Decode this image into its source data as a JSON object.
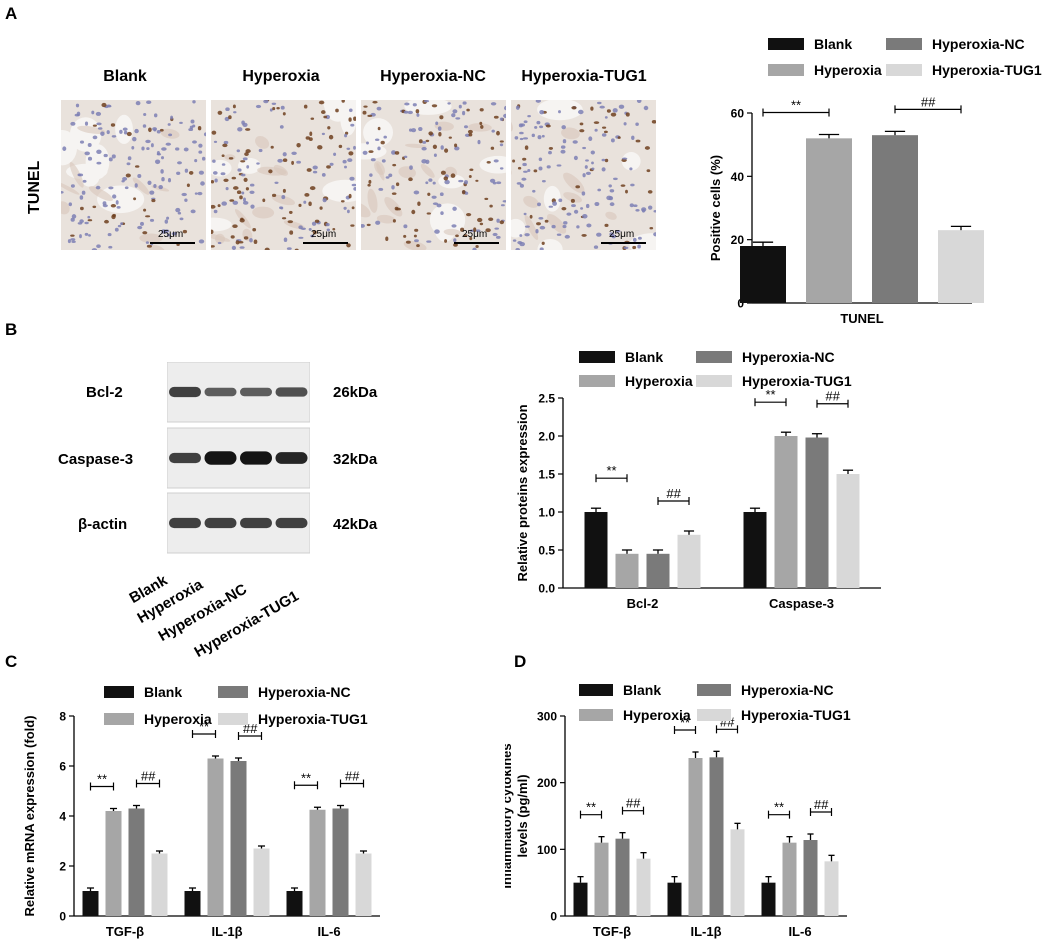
{
  "panels": {
    "a": "A",
    "b": "B",
    "c": "C",
    "d": "D"
  },
  "colors": {
    "blank": "#111111",
    "hyperoxia": "#a6a6a6",
    "hyperoxia_nc": "#7a7a7a",
    "hyperoxia_tug1": "#d8d8d8",
    "tissue": "#e9e2dc",
    "nuclei_blue": "#7d7fb4",
    "nuclei_brown": "#6e3f1e"
  },
  "micrographs": {
    "row_label": "TUNEL",
    "scale_bar": "25μm",
    "labels": [
      "Blank",
      "Hyperoxia",
      "Hyperoxia-NC",
      "Hyperoxia-TUG1"
    ],
    "brown_fraction": [
      0.18,
      0.52,
      0.53,
      0.23
    ]
  },
  "blot": {
    "rows": [
      {
        "protein": "Bcl-2",
        "size": "26kDa"
      },
      {
        "protein": "Caspase-3",
        "size": "32kDa"
      },
      {
        "protein": "β-actin",
        "size": "42kDa"
      }
    ],
    "lanes": [
      "Blank",
      "Hyperoxia",
      "Hyperoxia-NC",
      "Hyperoxia-TUG1"
    ],
    "band_intensity": [
      [
        1.0,
        0.45,
        0.45,
        0.7
      ],
      [
        1.0,
        2.0,
        1.98,
        1.5
      ],
      [
        1.0,
        1.0,
        1.0,
        1.0
      ]
    ]
  },
  "chart_data": [
    {
      "id": "A",
      "type": "bar",
      "categories": [
        "TUNEL"
      ],
      "series": [
        {
          "name": "Blank",
          "values": [
            18
          ],
          "errors": [
            1.2
          ]
        },
        {
          "name": "Hyperoxia",
          "values": [
            52
          ],
          "errors": [
            1.2
          ]
        },
        {
          "name": "Hyperoxia-NC",
          "values": [
            53
          ],
          "errors": [
            1.2
          ]
        },
        {
          "name": "Hyperoxia-TUG1",
          "values": [
            23
          ],
          "errors": [
            1.2
          ]
        }
      ],
      "ylabel": "Positive cells (%)",
      "xlabel": "",
      "ylim": [
        0,
        60
      ],
      "yticks": [
        0,
        20,
        40,
        60
      ],
      "ytick_labels": [
        "0",
        "20",
        "40",
        "60"
      ],
      "legend": "top",
      "annotations": [
        {
          "text": "**",
          "category": 0,
          "from": 0,
          "to": 1
        },
        {
          "text": "##",
          "category": 0,
          "from": 2,
          "to": 3
        }
      ]
    },
    {
      "id": "B",
      "type": "bar",
      "categories": [
        "Bcl-2",
        "Caspase-3"
      ],
      "series": [
        {
          "name": "Blank",
          "values": [
            1.0,
            1.0
          ],
          "errors": [
            0.05,
            0.05
          ]
        },
        {
          "name": "Hyperoxia",
          "values": [
            0.45,
            2.0
          ],
          "errors": [
            0.05,
            0.05
          ]
        },
        {
          "name": "Hyperoxia-NC",
          "values": [
            0.45,
            1.98
          ],
          "errors": [
            0.05,
            0.05
          ]
        },
        {
          "name": "Hyperoxia-TUG1",
          "values": [
            0.7,
            1.5
          ],
          "errors": [
            0.05,
            0.05
          ]
        }
      ],
      "ylabel": "Relative proteins expression",
      "xlabel": "",
      "ylim": [
        0,
        2.5
      ],
      "yticks": [
        0,
        0.5,
        1,
        1.5,
        2,
        2.5
      ],
      "ytick_labels": [
        "0.0",
        "0.5",
        "1.0",
        "1.5",
        "2.0",
        "2.5"
      ],
      "legend": "top",
      "annotations": [
        {
          "text": "**",
          "category": 0,
          "from": 0,
          "to": 1
        },
        {
          "text": "##",
          "category": 0,
          "from": 2,
          "to": 3
        },
        {
          "text": "**",
          "category": 1,
          "from": 0,
          "to": 1
        },
        {
          "text": "##",
          "category": 1,
          "from": 2,
          "to": 3
        }
      ]
    },
    {
      "id": "C",
      "type": "bar",
      "categories": [
        "TGF-β",
        "IL-1β",
        "IL-6"
      ],
      "series": [
        {
          "name": "Blank",
          "values": [
            1.0,
            1.0,
            1.0
          ],
          "errors": [
            0.12,
            0.12,
            0.12
          ]
        },
        {
          "name": "Hyperoxia",
          "values": [
            4.2,
            6.3,
            4.25
          ],
          "errors": [
            0.1,
            0.1,
            0.1
          ]
        },
        {
          "name": "Hyperoxia-NC",
          "values": [
            4.3,
            6.2,
            4.3
          ],
          "errors": [
            0.12,
            0.12,
            0.12
          ]
        },
        {
          "name": "Hyperoxia-TUG1",
          "values": [
            2.5,
            2.7,
            2.5
          ],
          "errors": [
            0.1,
            0.1,
            0.1
          ]
        }
      ],
      "ylabel": "Relative mRNA expression (fold)",
      "xlabel": "",
      "ylim": [
        0,
        8
      ],
      "yticks": [
        0,
        2,
        4,
        6,
        8
      ],
      "ytick_labels": [
        "0",
        "2",
        "4",
        "6",
        "8"
      ],
      "legend": "top",
      "annotations": [
        {
          "text": "**",
          "category": 0,
          "from": 0,
          "to": 1
        },
        {
          "text": "##",
          "category": 0,
          "from": 2,
          "to": 3
        },
        {
          "text": "**",
          "category": 1,
          "from": 0,
          "to": 1
        },
        {
          "text": "##",
          "category": 1,
          "from": 2,
          "to": 3
        },
        {
          "text": "**",
          "category": 2,
          "from": 0,
          "to": 1
        },
        {
          "text": "##",
          "category": 2,
          "from": 2,
          "to": 3
        }
      ]
    },
    {
      "id": "D",
      "type": "bar",
      "categories": [
        "TGF-β",
        "IL-1β",
        "IL-6"
      ],
      "series": [
        {
          "name": "Blank",
          "values": [
            50,
            50,
            50
          ],
          "errors": [
            9,
            9,
            9
          ]
        },
        {
          "name": "Hyperoxia",
          "values": [
            110,
            237,
            110
          ],
          "errors": [
            9,
            9,
            9
          ]
        },
        {
          "name": "Hyperoxia-NC",
          "values": [
            116,
            238,
            114
          ],
          "errors": [
            9,
            9,
            9
          ]
        },
        {
          "name": "Hyperoxia-TUG1",
          "values": [
            86,
            130,
            82
          ],
          "errors": [
            9,
            9,
            9
          ]
        }
      ],
      "ylabel": "Inflammatory cytokines levels (pg/ml)",
      "ylabel_lines": [
        "Inflammatory cytokines",
        "levels (pg/ml)"
      ],
      "xlabel": "",
      "ylim": [
        0,
        300
      ],
      "yticks": [
        0,
        100,
        200,
        300
      ],
      "ytick_labels": [
        "0",
        "100",
        "200",
        "300"
      ],
      "legend": "top",
      "annotations": [
        {
          "text": "**",
          "category": 0,
          "from": 0,
          "to": 1
        },
        {
          "text": "##",
          "category": 0,
          "from": 2,
          "to": 3
        },
        {
          "text": "**",
          "category": 1,
          "from": 0,
          "to": 1
        },
        {
          "text": "##",
          "category": 1,
          "from": 2,
          "to": 3
        },
        {
          "text": "**",
          "category": 2,
          "from": 0,
          "to": 1
        },
        {
          "text": "##",
          "category": 2,
          "from": 2,
          "to": 3
        }
      ]
    }
  ]
}
